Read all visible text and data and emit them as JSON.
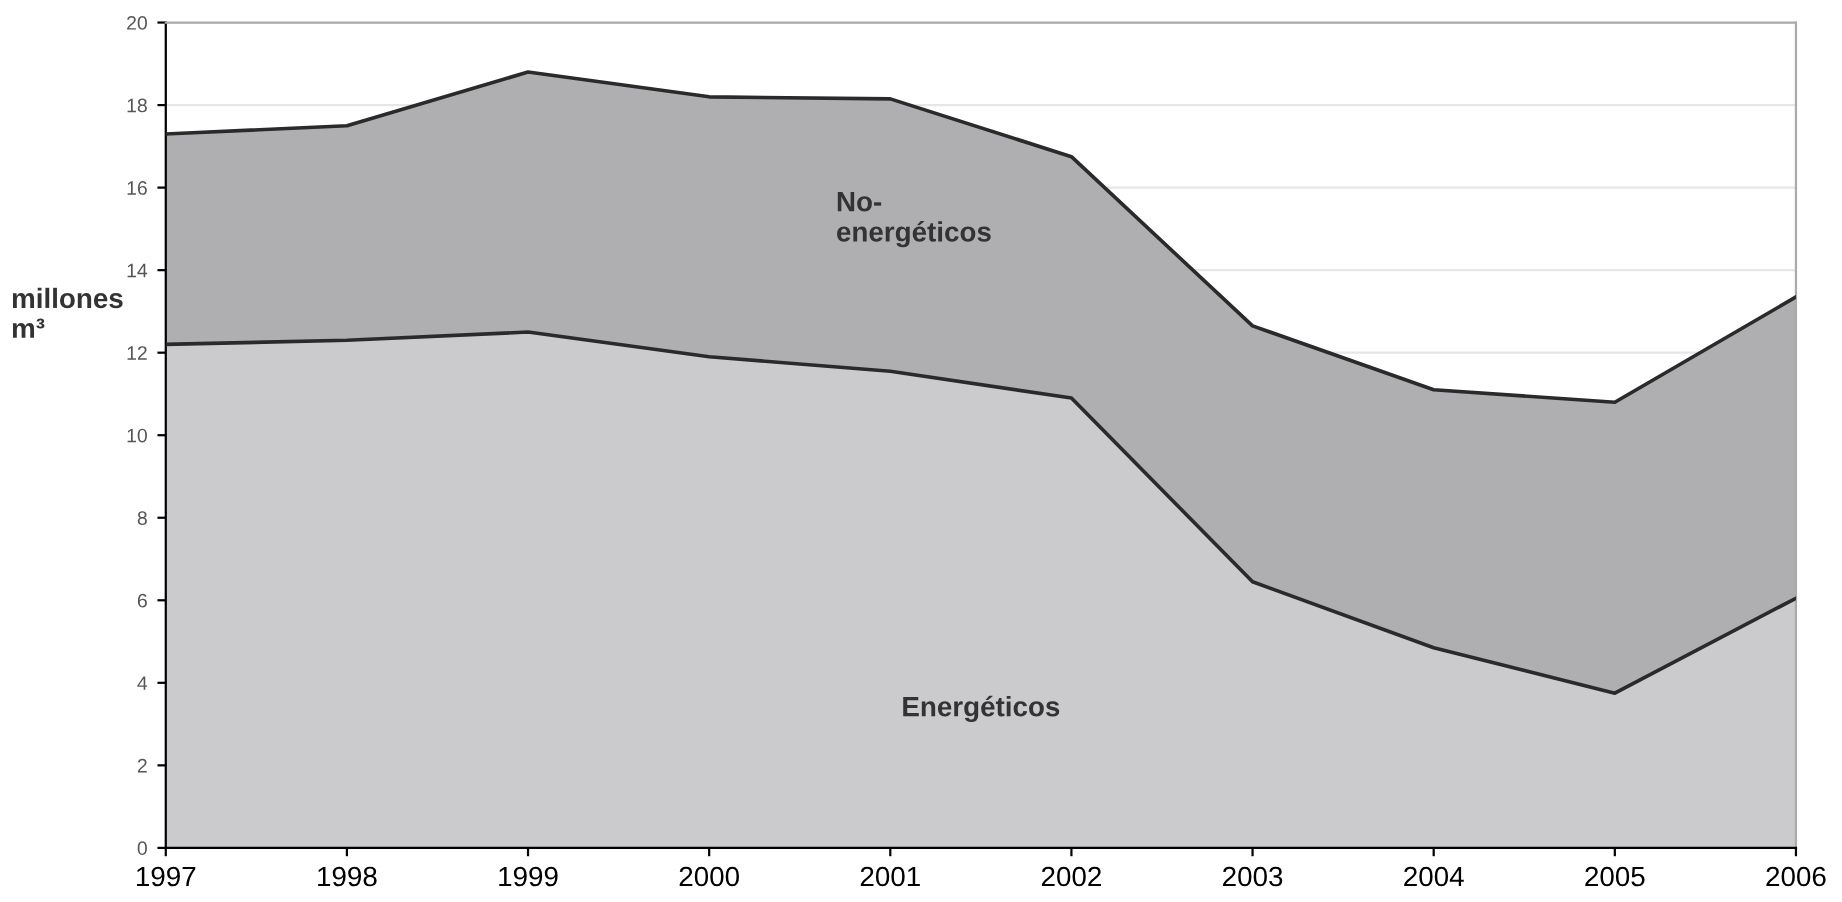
{
  "chart_data": {
    "type": "area",
    "stacked": true,
    "ylabel": "millones\nm³",
    "categories": [
      "1997",
      "1998",
      "1999",
      "2000",
      "2001",
      "2002",
      "2003",
      "2004",
      "2005",
      "2006"
    ],
    "series": [
      {
        "name": "Energéticos",
        "color": "#cbcbcd",
        "values": [
          12.2,
          12.3,
          12.5,
          11.9,
          11.55,
          10.9,
          6.45,
          4.85,
          3.75,
          6.05
        ]
      },
      {
        "name": "No-\nenergéticos",
        "color": "#afafb2",
        "values": [
          5.1,
          5.2,
          6.3,
          6.3,
          6.6,
          5.85,
          6.2,
          6.25,
          7.05,
          7.3
        ]
      }
    ],
    "ylim": [
      0,
      20
    ],
    "yticks": [
      0,
      2,
      4,
      6,
      8,
      10,
      12,
      14,
      16,
      18,
      20
    ],
    "grid": "y",
    "legend": false
  }
}
